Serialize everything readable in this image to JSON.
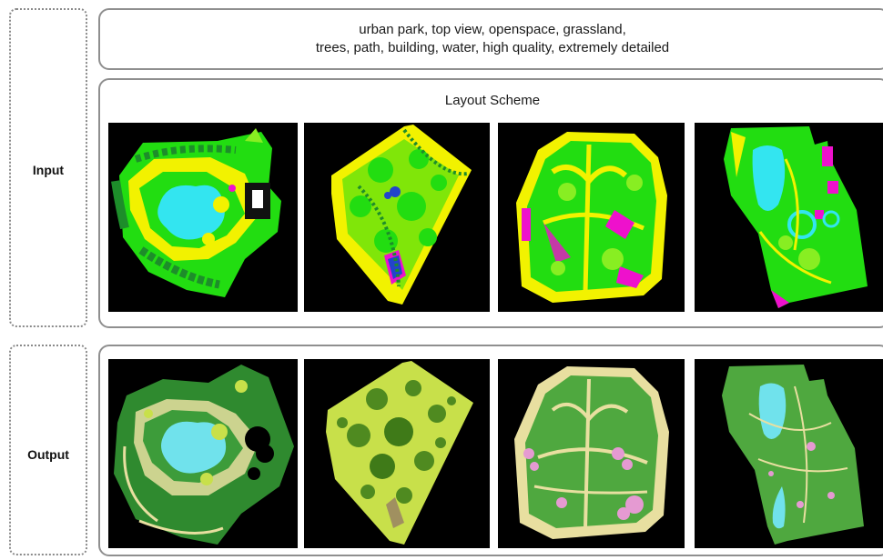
{
  "labels": {
    "input": "Input",
    "output": "Output"
  },
  "prompt": {
    "line1": "urban park, top view, openspace, grassland,",
    "line2": "trees, path, building, water, high quality, extremely detailed"
  },
  "layout_title": "Layout Scheme",
  "input_panels": [
    {
      "name": "park-1",
      "style": "scheme"
    },
    {
      "name": "park-2",
      "style": "scheme"
    },
    {
      "name": "park-3",
      "style": "scheme"
    },
    {
      "name": "park-4",
      "style": "scheme"
    }
  ],
  "output_panels": [
    {
      "name": "park-1",
      "style": "render"
    },
    {
      "name": "park-2",
      "style": "render"
    },
    {
      "name": "park-3",
      "style": "render"
    },
    {
      "name": "park-4",
      "style": "render"
    }
  ],
  "colors": {
    "tile_bg": "#000000",
    "scheme_grass": "#22dd11",
    "scheme_lawn": "#88ee22",
    "scheme_path": "#f2f200",
    "scheme_water": "#33e5f0",
    "scheme_building": "#ee11cc",
    "scheme_tree": "#1d8d2a",
    "render_grass": "#3d9c3a",
    "render_lawn": "#c8e04a",
    "render_path": "#e8dfa0",
    "render_water": "#70e2ec",
    "render_flower": "#e59ad2"
  }
}
